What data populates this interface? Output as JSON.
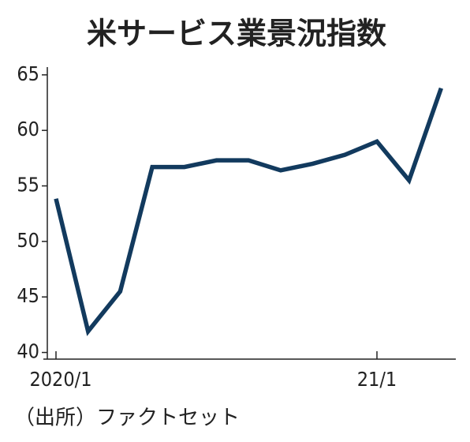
{
  "chart_data": {
    "type": "line",
    "title": "米サービス業景況指数",
    "categories": [
      "2020/1",
      null,
      null,
      null,
      null,
      null,
      null,
      null,
      null,
      null,
      "21/1",
      null,
      null
    ],
    "series": [
      {
        "color": "#123a5e",
        "values": [
          53.85,
          41.9,
          45.5,
          56.7,
          56.7,
          57.3,
          57.3,
          56.4,
          57.0,
          57.8,
          59.0,
          55.5,
          63.8
        ]
      }
    ],
    "ylim": [
      39.4,
      65.7
    ],
    "yticks": [
      40,
      45,
      50,
      55,
      60,
      65
    ],
    "source": "（出所）ファクトセット"
  }
}
